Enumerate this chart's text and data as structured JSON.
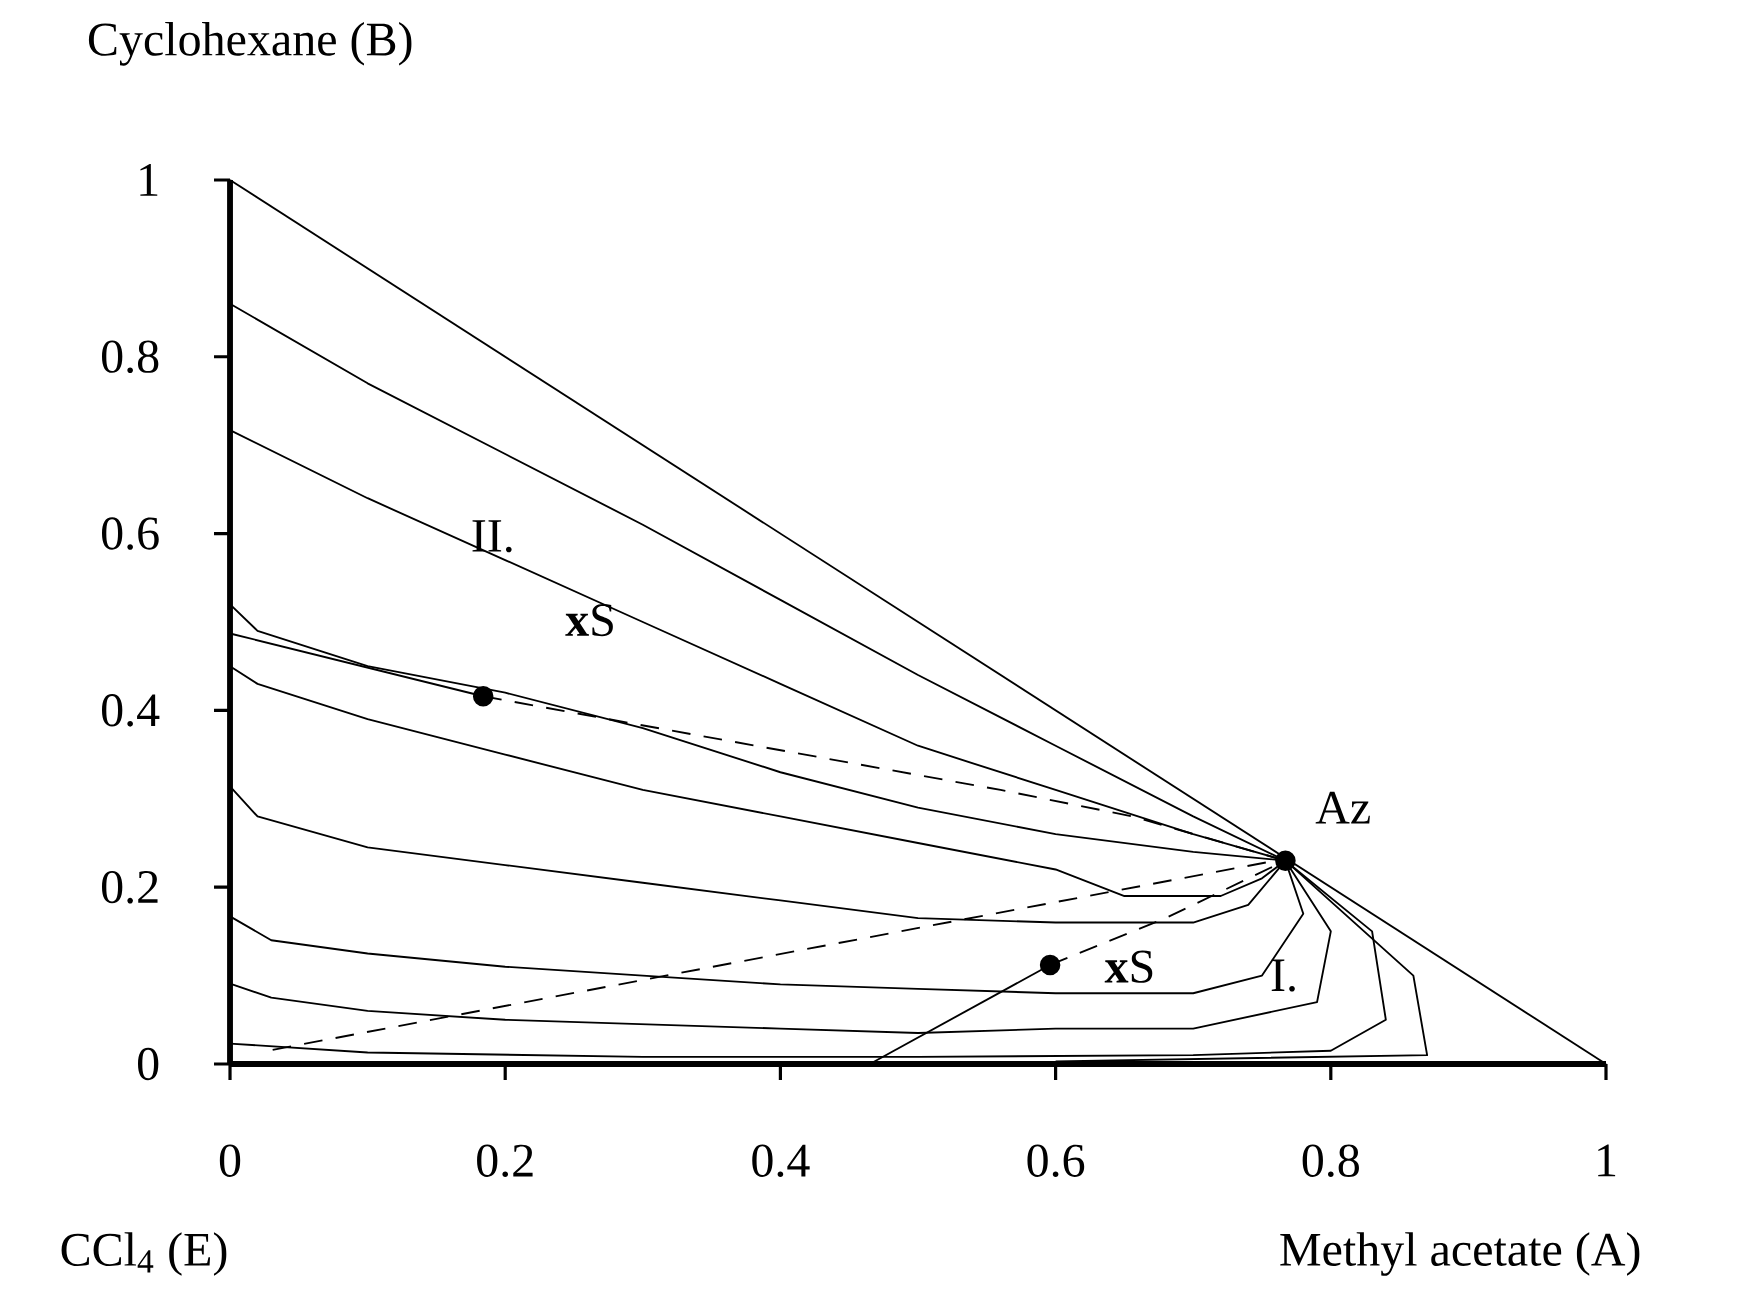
{
  "chart_data": {
    "type": "line",
    "xlabel": "Methyl acetate (A)",
    "ylabel": "Cyclohexane (B)",
    "xlim": [
      0,
      1
    ],
    "ylim": [
      0,
      1
    ],
    "xticks": [
      0,
      0.2,
      0.4,
      0.6,
      0.8,
      1
    ],
    "yticks": [
      0,
      0.2,
      0.4,
      0.6,
      0.8,
      1
    ],
    "series": [
      {
        "color": "#000000",
        "x": [
          0,
          1
        ],
        "values": [
          1,
          0
        ]
      },
      {
        "color": "#000000",
        "x": [
          0,
          0.1,
          0.2,
          0.3,
          0.4,
          0.5,
          0.6,
          0.7,
          0.767
        ],
        "values": [
          0.86,
          0.77,
          0.69,
          0.61,
          0.525,
          0.44,
          0.36,
          0.28,
          0.23
        ]
      },
      {
        "color": "#000000",
        "x": [
          0,
          0.1,
          0.2,
          0.3,
          0.4,
          0.5,
          0.6,
          0.7,
          0.767
        ],
        "values": [
          0.717,
          0.64,
          0.57,
          0.5,
          0.43,
          0.36,
          0.31,
          0.26,
          0.23
        ]
      },
      {
        "color": "#000000",
        "x": [
          0,
          0.02,
          0.1,
          0.2,
          0.3,
          0.4,
          0.5,
          0.6,
          0.7,
          0.767
        ],
        "values": [
          0.52,
          0.49,
          0.45,
          0.42,
          0.38,
          0.33,
          0.29,
          0.26,
          0.24,
          0.23
        ]
      },
      {
        "color": "#000000",
        "x": [
          0,
          0.02,
          0.1,
          0.2,
          0.3,
          0.4,
          0.5,
          0.6,
          0.65,
          0.72,
          0.75,
          0.767
        ],
        "values": [
          0.45,
          0.43,
          0.39,
          0.35,
          0.31,
          0.28,
          0.25,
          0.22,
          0.19,
          0.19,
          0.21,
          0.23
        ]
      },
      {
        "color": "#000000",
        "x": [
          0,
          0.02,
          0.1,
          0.2,
          0.3,
          0.4,
          0.5,
          0.6,
          0.7,
          0.74,
          0.767
        ],
        "values": [
          0.314,
          0.28,
          0.245,
          0.225,
          0.205,
          0.185,
          0.165,
          0.16,
          0.16,
          0.18,
          0.23
        ]
      },
      {
        "color": "#000000",
        "x": [
          0,
          0.03,
          0.1,
          0.2,
          0.3,
          0.4,
          0.5,
          0.6,
          0.7,
          0.75,
          0.78,
          0.767
        ],
        "values": [
          0.167,
          0.14,
          0.125,
          0.11,
          0.1,
          0.09,
          0.085,
          0.08,
          0.08,
          0.1,
          0.17,
          0.23
        ]
      },
      {
        "color": "#000000",
        "x": [
          0,
          0.03,
          0.1,
          0.2,
          0.4,
          0.5,
          0.6,
          0.7,
          0.79,
          0.8,
          0.767
        ],
        "values": [
          0.091,
          0.075,
          0.06,
          0.05,
          0.04,
          0.035,
          0.04,
          0.04,
          0.07,
          0.15,
          0.23
        ]
      },
      {
        "color": "#000000",
        "x": [
          0,
          0.1,
          0.3,
          0.5,
          0.7,
          0.8,
          0.84,
          0.83,
          0.767
        ],
        "values": [
          0.023,
          0.013,
          0.008,
          0.008,
          0.01,
          0.015,
          0.05,
          0.15,
          0.23
        ]
      },
      {
        "color": "#000000",
        "x": [
          0.6,
          0.87,
          0.86,
          0.767
        ],
        "values": [
          0.003,
          0.01,
          0.1,
          0.23
        ]
      },
      {
        "color": "#000000",
        "x": [
          0,
          0.184
        ],
        "values": [
          0.487,
          0.416
        ]
      },
      {
        "color": "#000000",
        "x": [
          0.465,
          0.596
        ],
        "values": [
          0,
          0.112
        ]
      },
      {
        "color": "#000000",
        "line_style": "dashed",
        "x": [
          0.184,
          0.293,
          0.56,
          0.656,
          0.767
        ],
        "values": [
          0.416,
          0.385,
          0.31,
          0.28,
          0.23
        ]
      },
      {
        "color": "#000000",
        "line_style": "dashed",
        "x": [
          0.031,
          0.545,
          0.76
        ],
        "values": [
          0.016,
          0.167,
          0.23
        ]
      },
      {
        "color": "#000000",
        "line_style": "dashed",
        "x": [
          0.596,
          0.68,
          0.767
        ],
        "values": [
          0.112,
          0.165,
          0.23
        ]
      },
      {
        "type": "scatter",
        "marker": "circle",
        "color": "#000000",
        "x": [
          0.184,
          0.596,
          0.767
        ],
        "values": [
          0.416,
          0.112,
          0.23
        ]
      }
    ],
    "annotations": [
      "Az",
      "**x**S",
      "**x**S",
      "II.",
      "I.",
      "CCl$_{4}$ (E)"
    ]
  }
}
